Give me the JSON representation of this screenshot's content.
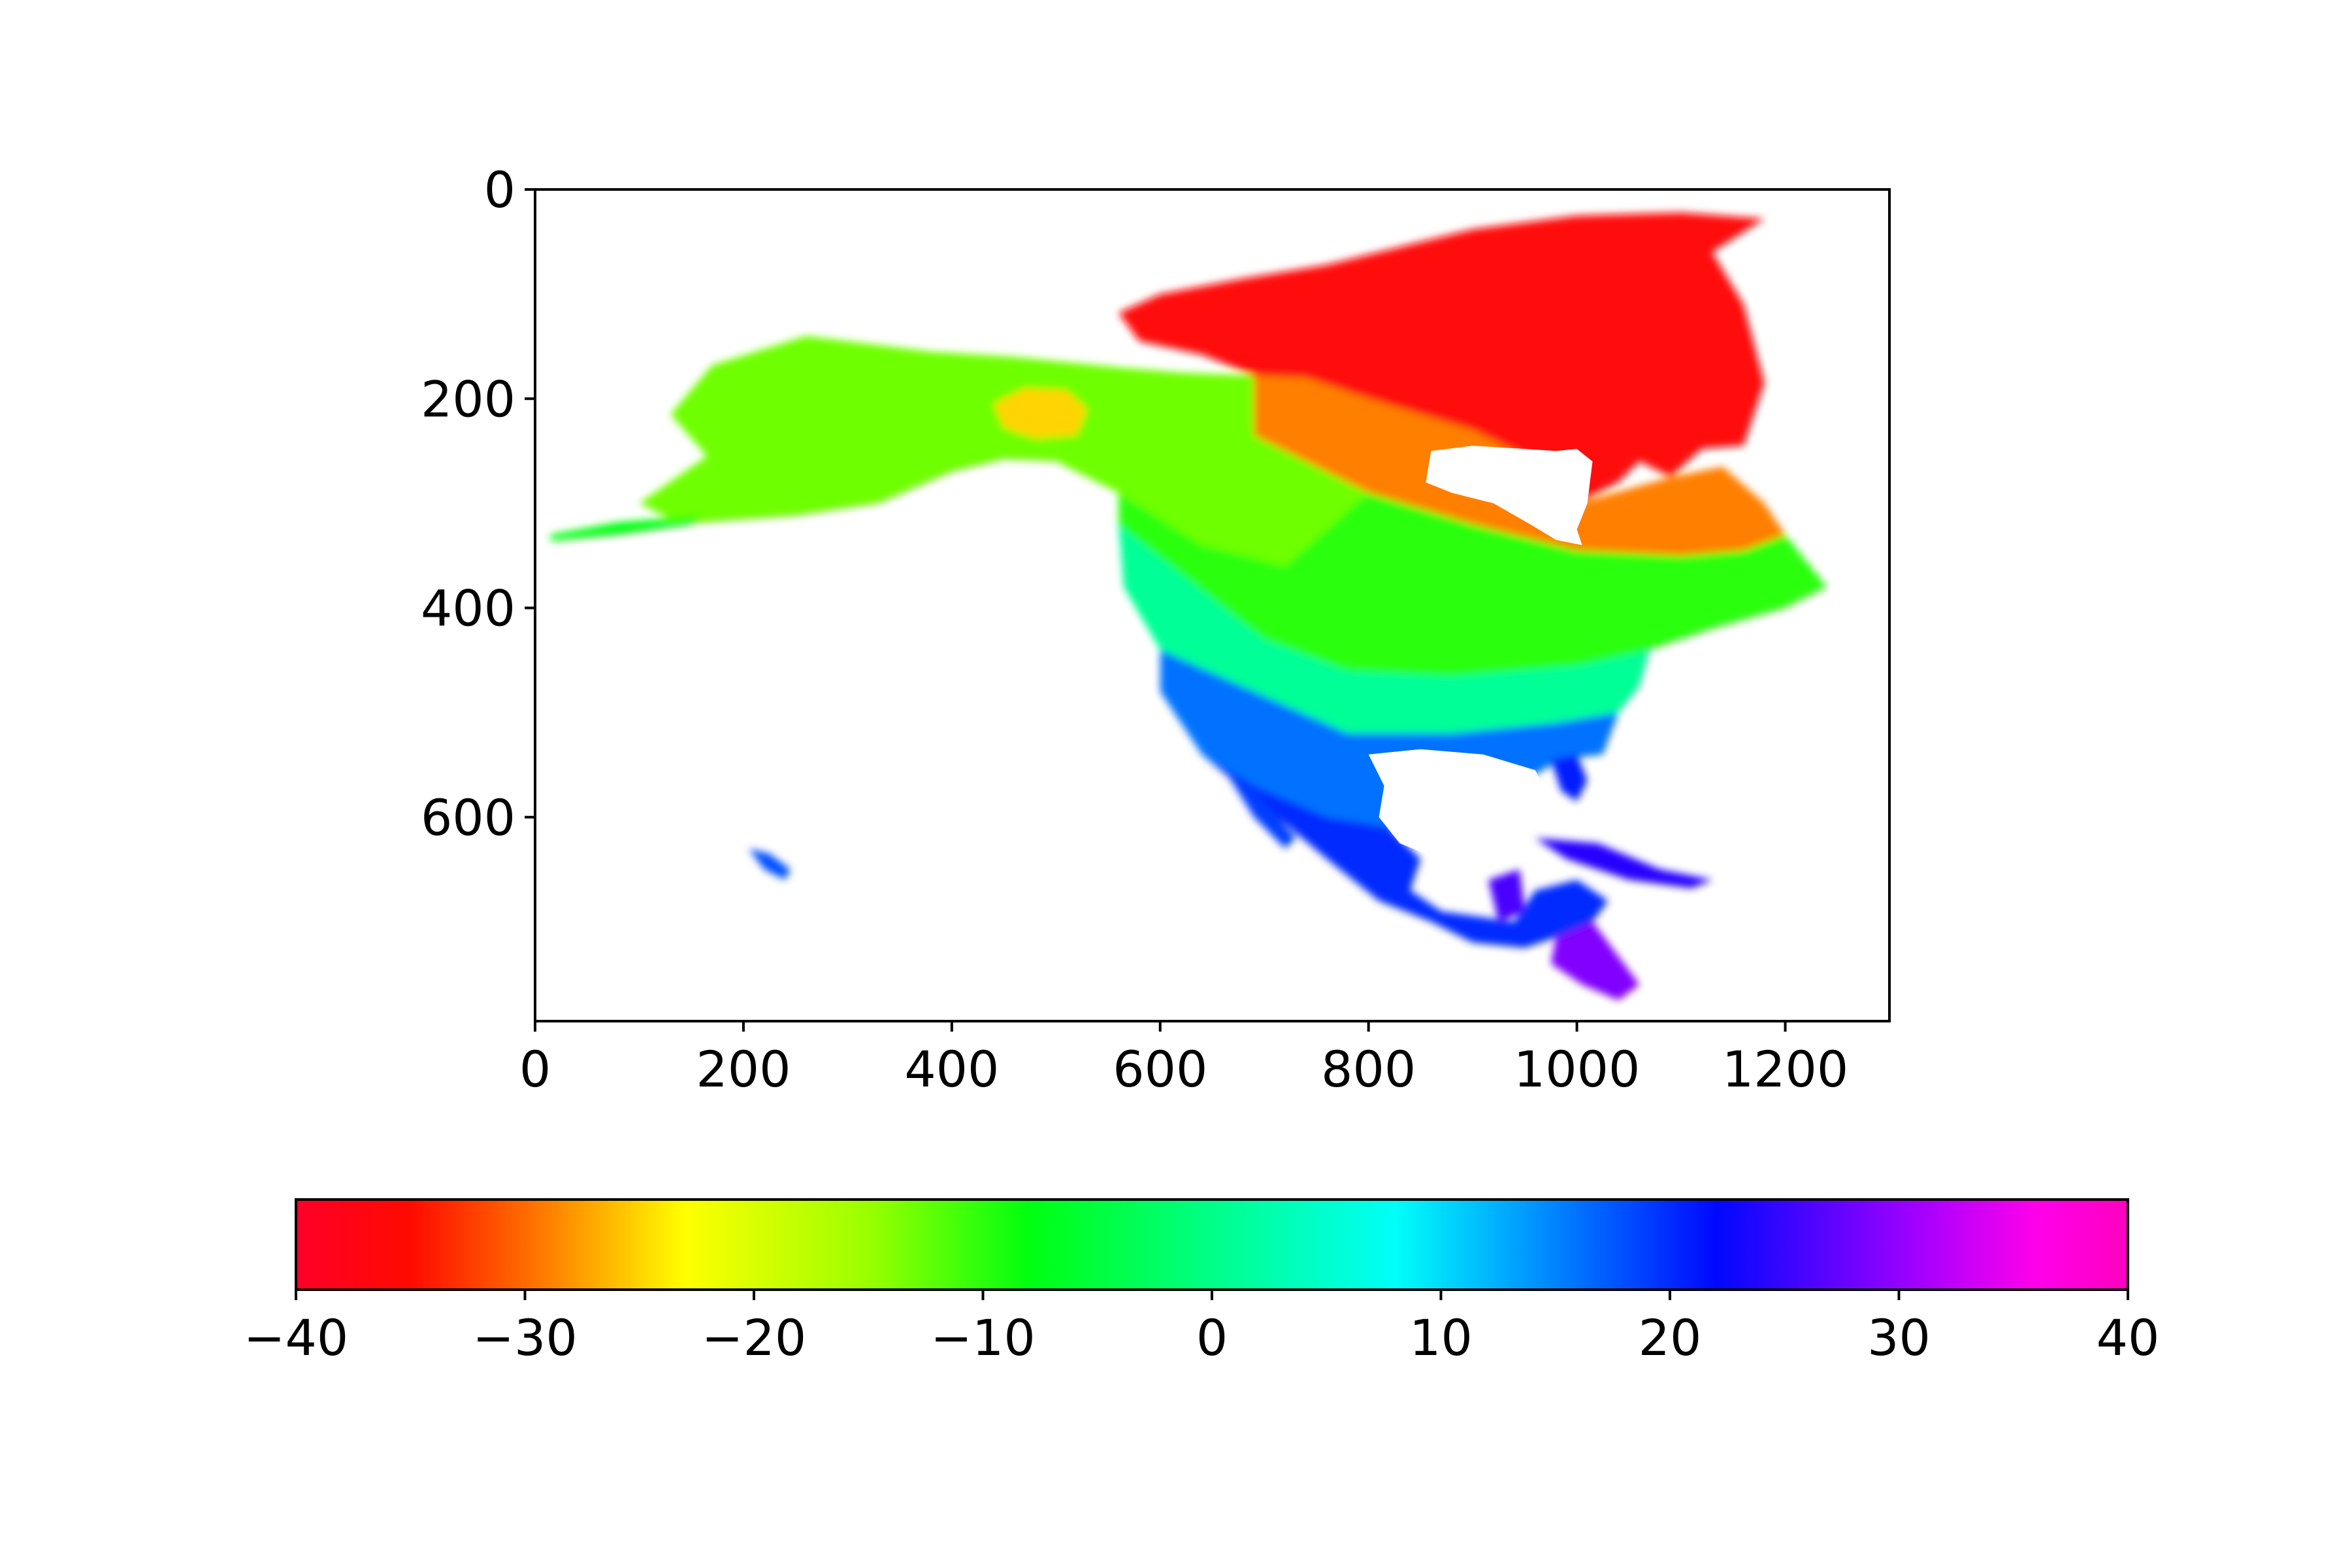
{
  "chart_data": {
    "type": "heatmap",
    "title": "",
    "xlabel": "",
    "ylabel": "",
    "xlim": [
      0,
      1300
    ],
    "ylim": [
      795,
      0
    ],
    "x_ticks": [
      0,
      200,
      400,
      600,
      800,
      1000,
      1200
    ],
    "x_tick_labels": [
      "0",
      "200",
      "400",
      "600",
      "800",
      "1000",
      "1200"
    ],
    "y_ticks": [
      0,
      200,
      400,
      600
    ],
    "y_tick_labels": [
      "0",
      "200",
      "400",
      "600"
    ],
    "grid": false,
    "colormap": "gist_rainbow",
    "colorbar": {
      "orientation": "horizontal",
      "placement": "bottom",
      "range": [
        -40,
        40
      ],
      "ticks": [
        -40,
        -30,
        -20,
        -10,
        0,
        10,
        20,
        30,
        40
      ],
      "tick_labels": [
        "−40",
        "−30",
        "−20",
        "−10",
        "0",
        "10",
        "20",
        "30",
        "40"
      ],
      "stops": [
        {
          "value": -40,
          "color": "#ff0029"
        },
        {
          "value": -35,
          "color": "#ff0a00"
        },
        {
          "value": -30,
          "color": "#ff6a00"
        },
        {
          "value": -23,
          "color": "#ffff00"
        },
        {
          "value": -15,
          "color": "#9aff00"
        },
        {
          "value": -8,
          "color": "#00ff10"
        },
        {
          "value": 0,
          "color": "#00ff88"
        },
        {
          "value": 8,
          "color": "#00fff8"
        },
        {
          "value": 14,
          "color": "#0095ff"
        },
        {
          "value": 22,
          "color": "#0008ff"
        },
        {
          "value": 31,
          "color": "#a600ff"
        },
        {
          "value": 36,
          "color": "#ff00ea"
        },
        {
          "value": 40,
          "color": "#ff00bf"
        }
      ]
    },
    "regions": [
      {
        "name": "arctic-archipelago",
        "value": -36,
        "polygon": [
          [
            560,
            118
          ],
          [
            600,
            100
          ],
          [
            680,
            85
          ],
          [
            760,
            72
          ],
          [
            850,
            50
          ],
          [
            900,
            38
          ],
          [
            1000,
            25
          ],
          [
            1100,
            22
          ],
          [
            1180,
            28
          ],
          [
            1130,
            60
          ],
          [
            1160,
            110
          ],
          [
            1180,
            185
          ],
          [
            1160,
            245
          ],
          [
            1120,
            248
          ],
          [
            1090,
            275
          ],
          [
            1060,
            260
          ],
          [
            1040,
            280
          ],
          [
            1000,
            300
          ],
          [
            950,
            255
          ],
          [
            900,
            230
          ],
          [
            850,
            215
          ],
          [
            800,
            200
          ],
          [
            740,
            180
          ],
          [
            690,
            178
          ],
          [
            640,
            158
          ],
          [
            580,
            145
          ]
        ]
      },
      {
        "name": "north-canada",
        "value": -29,
        "polygon": [
          [
            690,
            178
          ],
          [
            740,
            180
          ],
          [
            800,
            200
          ],
          [
            850,
            215
          ],
          [
            900,
            230
          ],
          [
            950,
            255
          ],
          [
            1000,
            300
          ],
          [
            1090,
            275
          ],
          [
            1140,
            265
          ],
          [
            1180,
            300
          ],
          [
            1200,
            330
          ],
          [
            1160,
            345
          ],
          [
            1100,
            350
          ],
          [
            1000,
            345
          ],
          [
            900,
            320
          ],
          [
            800,
            290
          ],
          [
            740,
            260
          ],
          [
            690,
            235
          ]
        ]
      },
      {
        "name": "alaska-yukon",
        "value": -13,
        "polygon": [
          [
            130,
            215
          ],
          [
            170,
            168
          ],
          [
            260,
            140
          ],
          [
            380,
            155
          ],
          [
            460,
            160
          ],
          [
            560,
            170
          ],
          [
            620,
            175
          ],
          [
            690,
            178
          ],
          [
            690,
            235
          ],
          [
            740,
            260
          ],
          [
            800,
            290
          ],
          [
            720,
            360
          ],
          [
            640,
            340
          ],
          [
            560,
            290
          ],
          [
            500,
            260
          ],
          [
            450,
            258
          ],
          [
            400,
            270
          ],
          [
            330,
            300
          ],
          [
            250,
            312
          ],
          [
            140,
            320
          ],
          [
            100,
            300
          ],
          [
            165,
            255
          ]
        ]
      },
      {
        "name": "yukon-mountains",
        "value": -25,
        "polygon": [
          [
            440,
            205
          ],
          [
            470,
            190
          ],
          [
            510,
            192
          ],
          [
            530,
            210
          ],
          [
            520,
            235
          ],
          [
            480,
            238
          ],
          [
            450,
            228
          ]
        ]
      },
      {
        "name": "aleutian-chain",
        "value": -8,
        "polygon": [
          [
            15,
            330
          ],
          [
            80,
            318
          ],
          [
            160,
            312
          ],
          [
            150,
            320
          ],
          [
            80,
            330
          ],
          [
            15,
            336
          ]
        ]
      },
      {
        "name": "central-canada",
        "value": -10,
        "polygon": [
          [
            560,
            290
          ],
          [
            640,
            340
          ],
          [
            720,
            360
          ],
          [
            800,
            290
          ],
          [
            900,
            320
          ],
          [
            1000,
            345
          ],
          [
            1100,
            350
          ],
          [
            1160,
            345
          ],
          [
            1200,
            330
          ],
          [
            1240,
            380
          ],
          [
            1200,
            400
          ],
          [
            1130,
            420
          ],
          [
            1070,
            440
          ],
          [
            1000,
            455
          ],
          [
            880,
            465
          ],
          [
            780,
            460
          ],
          [
            700,
            430
          ],
          [
            560,
            320
          ]
        ]
      },
      {
        "name": "northern-us",
        "value": 1,
        "polygon": [
          [
            560,
            320
          ],
          [
            700,
            430
          ],
          [
            780,
            460
          ],
          [
            880,
            465
          ],
          [
            1000,
            455
          ],
          [
            1070,
            440
          ],
          [
            1060,
            475
          ],
          [
            1040,
            500
          ],
          [
            980,
            510
          ],
          [
            880,
            520
          ],
          [
            780,
            520
          ],
          [
            690,
            480
          ],
          [
            600,
            440
          ],
          [
            565,
            380
          ]
        ]
      },
      {
        "name": "southern-us",
        "value": 16,
        "polygon": [
          [
            600,
            440
          ],
          [
            690,
            480
          ],
          [
            780,
            520
          ],
          [
            880,
            520
          ],
          [
            980,
            510
          ],
          [
            1040,
            500
          ],
          [
            1025,
            540
          ],
          [
            985,
            545
          ],
          [
            950,
            565
          ],
          [
            920,
            580
          ],
          [
            890,
            600
          ],
          [
            820,
            610
          ],
          [
            760,
            600
          ],
          [
            690,
            570
          ],
          [
            640,
            540
          ],
          [
            600,
            480
          ]
        ]
      },
      {
        "name": "florida",
        "value": 21,
        "polygon": [
          [
            975,
            545
          ],
          [
            1000,
            540
          ],
          [
            1010,
            565
          ],
          [
            1000,
            585
          ],
          [
            985,
            575
          ]
        ]
      },
      {
        "name": "mexico",
        "value": 20,
        "polygon": [
          [
            640,
            540
          ],
          [
            690,
            570
          ],
          [
            760,
            600
          ],
          [
            820,
            610
          ],
          [
            850,
            640
          ],
          [
            840,
            670
          ],
          [
            870,
            690
          ],
          [
            940,
            700
          ],
          [
            960,
            670
          ],
          [
            1000,
            660
          ],
          [
            1030,
            680
          ],
          [
            1015,
            700
          ],
          [
            980,
            715
          ],
          [
            950,
            725
          ],
          [
            900,
            720
          ],
          [
            860,
            700
          ],
          [
            810,
            680
          ],
          [
            760,
            640
          ],
          [
            700,
            590
          ]
        ]
      },
      {
        "name": "baja-california",
        "value": 19,
        "polygon": [
          [
            665,
            560
          ],
          [
            690,
            575
          ],
          [
            730,
            620
          ],
          [
            720,
            630
          ],
          [
            690,
            600
          ]
        ]
      },
      {
        "name": "yucatan",
        "value": 26,
        "polygon": [
          [
            915,
            660
          ],
          [
            945,
            650
          ],
          [
            950,
            690
          ],
          [
            925,
            700
          ]
        ]
      },
      {
        "name": "central-america",
        "value": 29,
        "polygon": [
          [
            980,
            715
          ],
          [
            1015,
            700
          ],
          [
            1030,
            720
          ],
          [
            1060,
            760
          ],
          [
            1040,
            775
          ],
          [
            1005,
            760
          ],
          [
            975,
            740
          ]
        ]
      },
      {
        "name": "cuba-greater-antilles",
        "value": 24,
        "polygon": [
          [
            960,
            620
          ],
          [
            1020,
            625
          ],
          [
            1080,
            650
          ],
          [
            1130,
            660
          ],
          [
            1110,
            668
          ],
          [
            1050,
            660
          ],
          [
            990,
            640
          ]
        ]
      },
      {
        "name": "hawaii",
        "value": 18,
        "polygon": [
          [
            205,
            630
          ],
          [
            225,
            635
          ],
          [
            245,
            650
          ],
          [
            240,
            660
          ],
          [
            220,
            650
          ]
        ]
      }
    ],
    "holes": [
      {
        "name": "hudson-bay",
        "polygon": [
          [
            860,
            250
          ],
          [
            900,
            245
          ],
          [
            950,
            248
          ],
          [
            980,
            250
          ],
          [
            1000,
            248
          ],
          [
            1015,
            260
          ],
          [
            1010,
            300
          ],
          [
            1000,
            325
          ],
          [
            1005,
            340
          ],
          [
            980,
            335
          ],
          [
            955,
            320
          ],
          [
            920,
            300
          ],
          [
            880,
            290
          ],
          [
            855,
            280
          ]
        ]
      },
      {
        "name": "gulf-of-mexico",
        "polygon": [
          [
            800,
            540
          ],
          [
            850,
            535
          ],
          [
            910,
            540
          ],
          [
            960,
            555
          ],
          [
            970,
            575
          ],
          [
            950,
            620
          ],
          [
            920,
            640
          ],
          [
            880,
            645
          ],
          [
            830,
            625
          ],
          [
            810,
            600
          ],
          [
            815,
            570
          ]
        ]
      }
    ]
  }
}
